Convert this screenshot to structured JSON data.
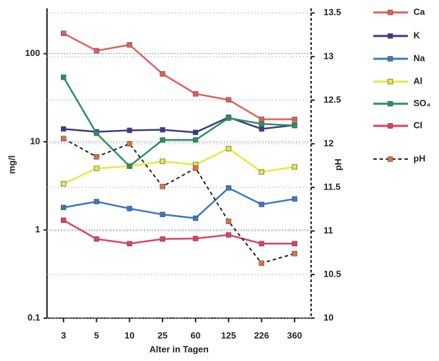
{
  "chart_data": {
    "type": "line",
    "x_label": "Alter in Tagen",
    "y_label": "mg/l",
    "y2_label": "pH",
    "categories": [
      "3",
      "5",
      "10",
      "25",
      "60",
      "125",
      "226",
      "360"
    ],
    "log_y": true,
    "grid": true,
    "ylim": [
      0.1,
      310
    ],
    "yticks": [
      0.1,
      1,
      10,
      100
    ],
    "y2lim": [
      10,
      13.53
    ],
    "y2ticks": [
      10,
      10.5,
      11,
      11.5,
      12,
      12.5,
      13,
      13.5
    ],
    "series": [
      {
        "name": "Ca",
        "color": "#e0605a",
        "values": [
          170,
          108,
          126,
          59,
          35,
          30,
          18,
          18
        ]
      },
      {
        "name": "K",
        "color": "#3a3a8a",
        "values": [
          14,
          13,
          13.5,
          13.7,
          12.8,
          19,
          14,
          15.5
        ]
      },
      {
        "name": "Na",
        "color": "#3a78c0",
        "values": [
          1.8,
          2.1,
          1.75,
          1.5,
          1.36,
          3.0,
          1.95,
          2.25
        ]
      },
      {
        "name": "Al",
        "color": "#e8e840",
        "values": [
          3.35,
          5.0,
          5.3,
          6.0,
          5.5,
          8.4,
          4.55,
          5.2
        ]
      },
      {
        "name": "SO₄",
        "color": "#2a9060",
        "values": [
          54,
          12.5,
          5.3,
          10.5,
          10.5,
          18.6,
          16,
          15.3
        ]
      },
      {
        "name": "Cl",
        "color": "#e04060",
        "values": [
          1.29,
          0.79,
          0.7,
          0.79,
          0.8,
          0.88,
          0.7,
          0.7
        ]
      },
      {
        "name": "pH",
        "color": "#222222",
        "marker_color": "#e07040",
        "axis": "y2",
        "line_style": "dashed",
        "values": [
          12.06,
          11.85,
          12.0,
          11.51,
          11.72,
          11.11,
          10.63,
          10.74
        ]
      }
    ]
  }
}
